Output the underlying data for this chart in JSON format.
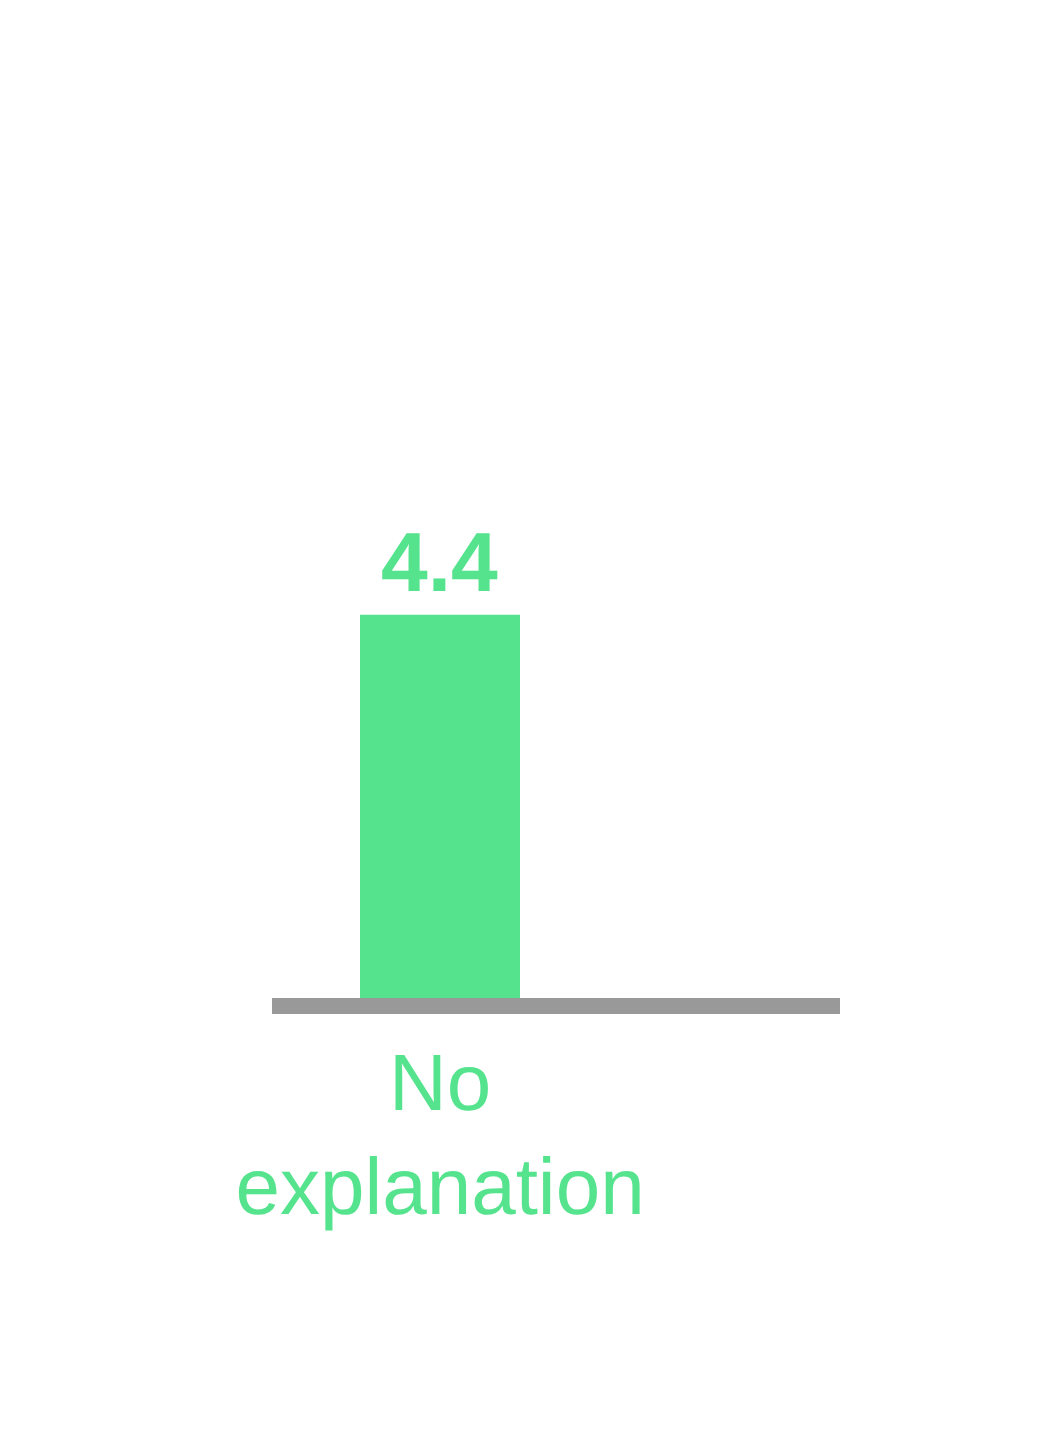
{
  "chart_data": {
    "type": "bar",
    "categories": [
      "No explanation"
    ],
    "series": [
      {
        "color": "#55e38e",
        "values": [
          4.4
        ]
      }
    ],
    "data_labels": true
  }
}
